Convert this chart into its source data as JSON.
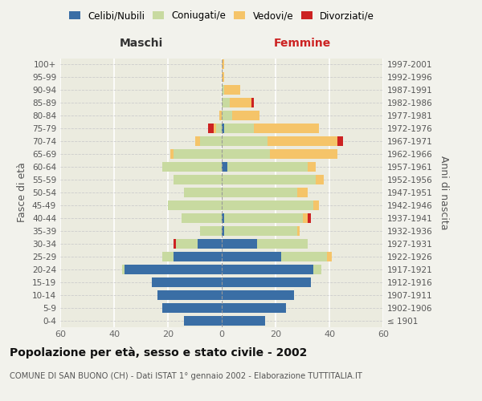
{
  "age_groups": [
    "100+",
    "95-99",
    "90-94",
    "85-89",
    "80-84",
    "75-79",
    "70-74",
    "65-69",
    "60-64",
    "55-59",
    "50-54",
    "45-49",
    "40-44",
    "35-39",
    "30-34",
    "25-29",
    "20-24",
    "15-19",
    "10-14",
    "5-9",
    "0-4"
  ],
  "birth_years": [
    "≤ 1901",
    "1902-1906",
    "1907-1911",
    "1912-1916",
    "1917-1921",
    "1922-1926",
    "1927-1931",
    "1932-1936",
    "1937-1941",
    "1942-1946",
    "1947-1951",
    "1952-1956",
    "1957-1961",
    "1962-1966",
    "1967-1971",
    "1972-1976",
    "1977-1981",
    "1982-1986",
    "1987-1991",
    "1992-1996",
    "1997-2001"
  ],
  "males_celibi": [
    0,
    0,
    0,
    0,
    0,
    0,
    0,
    0,
    0,
    0,
    0,
    0,
    0,
    0,
    9,
    18,
    36,
    26,
    24,
    22,
    14
  ],
  "males_coniugati": [
    0,
    0,
    0,
    0,
    0,
    2,
    8,
    18,
    22,
    18,
    14,
    20,
    15,
    8,
    8,
    4,
    1,
    0,
    0,
    0,
    0
  ],
  "males_vedovi": [
    0,
    0,
    0,
    0,
    1,
    1,
    2,
    1,
    0,
    0,
    0,
    0,
    0,
    0,
    0,
    0,
    0,
    0,
    0,
    0,
    0
  ],
  "males_divorziati": [
    0,
    0,
    0,
    0,
    0,
    2,
    0,
    0,
    0,
    0,
    0,
    0,
    0,
    0,
    1,
    0,
    0,
    0,
    0,
    0,
    0
  ],
  "females_nubili": [
    0,
    0,
    0,
    0,
    0,
    1,
    0,
    0,
    2,
    0,
    0,
    0,
    1,
    1,
    13,
    22,
    34,
    33,
    27,
    24,
    16
  ],
  "females_coniugate": [
    0,
    0,
    1,
    3,
    4,
    11,
    17,
    18,
    30,
    35,
    28,
    34,
    29,
    27,
    19,
    17,
    3,
    0,
    0,
    0,
    0
  ],
  "females_vedove": [
    1,
    1,
    6,
    8,
    10,
    24,
    26,
    25,
    3,
    3,
    4,
    2,
    2,
    1,
    0,
    2,
    0,
    0,
    0,
    0,
    0
  ],
  "females_divorziate": [
    0,
    0,
    0,
    1,
    0,
    0,
    2,
    0,
    0,
    0,
    0,
    0,
    1,
    0,
    0,
    0,
    0,
    0,
    0,
    0,
    0
  ],
  "color_celibi": "#3a6ea5",
  "color_coniugati": "#c8daa0",
  "color_vedovi": "#f5c469",
  "color_divorziati": "#cc2222",
  "xlim": 60,
  "title": "Popolazione per età, sesso e stato civile - 2002",
  "subtitle": "COMUNE DI SAN BUONO (CH) - Dati ISTAT 1° gennaio 2002 - Elaborazione TUTTITALIA.IT",
  "ylabel_left": "Fasce di età",
  "ylabel_right": "Anni di nascita",
  "xlabel_maschi": "Maschi",
  "xlabel_femmine": "Femmine",
  "legend_labels": [
    "Celibi/Nubili",
    "Coniugati/e",
    "Vedovi/e",
    "Divorziati/e"
  ],
  "bg_color": "#f2f2ec",
  "plot_bg": "#ebebdf"
}
